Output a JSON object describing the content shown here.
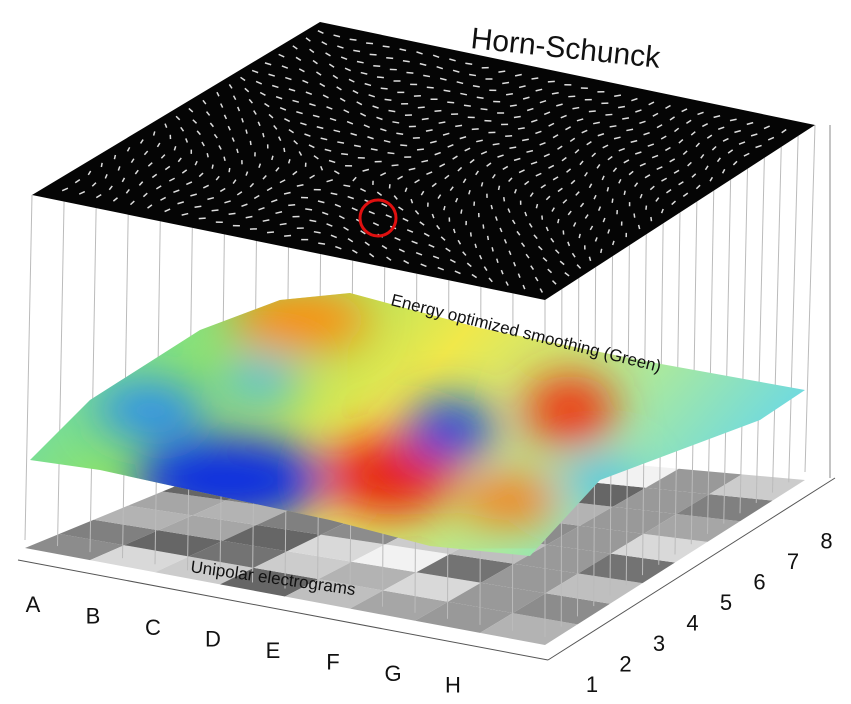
{
  "title": "Horn-Schunck",
  "surface_label": "Energy optimized smoothing (Green)",
  "base_label": "Unipolar electrograms",
  "x_labels": [
    "A",
    "B",
    "C",
    "D",
    "E",
    "F",
    "G",
    "H"
  ],
  "y_labels": [
    "1",
    "2",
    "3",
    "4",
    "5",
    "6",
    "7",
    "8"
  ]
}
